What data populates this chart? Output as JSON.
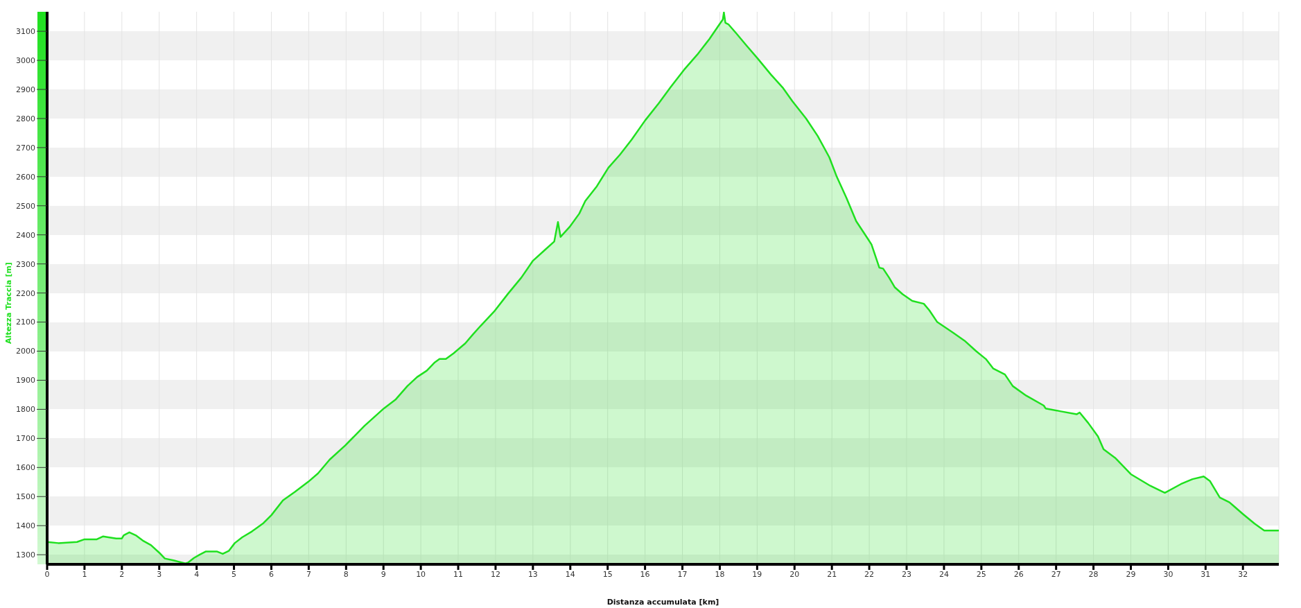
{
  "chart_data": {
    "type": "area",
    "xlabel": "Distanza accumulata [km]",
    "ylabel": "Altezza Traccia [m]",
    "x": [
      0,
      0.3,
      0.8,
      1.0,
      1.33,
      1.5,
      1.64,
      1.85,
      2.0,
      2.05,
      2.2,
      2.37,
      2.58,
      2.78,
      3.0,
      3.15,
      3.4,
      3.7,
      3.77,
      3.93,
      4.08,
      4.24,
      4.55,
      4.7,
      4.86,
      5.02,
      5.22,
      5.48,
      5.79,
      6.0,
      6.31,
      6.63,
      6.99,
      7.25,
      7.56,
      7.98,
      8.49,
      9.01,
      9.32,
      9.64,
      9.9,
      10.16,
      10.36,
      10.5,
      10.67,
      10.88,
      11.19,
      11.39,
      11.6,
      11.96,
      12.33,
      12.69,
      13.0,
      13.31,
      13.57,
      13.67,
      13.74,
      13.98,
      14.24,
      14.4,
      14.71,
      15.02,
      15.33,
      15.64,
      16.0,
      16.37,
      16.68,
      17.04,
      17.4,
      17.72,
      17.97,
      18.08,
      18.11,
      18.15,
      18.23,
      18.44,
      18.7,
      19.01,
      19.37,
      19.68,
      19.94,
      20.31,
      20.62,
      20.93,
      21.13,
      21.39,
      21.65,
      21.96,
      22.06,
      22.27,
      22.37,
      22.53,
      22.68,
      22.89,
      23.15,
      23.46,
      23.61,
      23.82,
      24.24,
      24.55,
      24.86,
      25.12,
      25.32,
      25.63,
      25.84,
      26.2,
      26.67,
      26.72,
      27.13,
      27.55,
      27.63,
      27.86,
      28.12,
      28.27,
      28.58,
      29.0,
      29.52,
      29.91,
      30.34,
      30.65,
      30.95,
      31.12,
      31.38,
      31.64,
      32.0,
      32.31,
      32.57,
      32.96
    ],
    "series": [
      {
        "color": "#1fe01f",
        "values": [
          1344,
          1340,
          1344,
          1353,
          1353,
          1363,
          1360,
          1356,
          1356,
          1367,
          1377,
          1367,
          1347,
          1333,
          1307,
          1287,
          1280,
          1270,
          1273,
          1289,
          1300,
          1311,
          1311,
          1303,
          1313,
          1340,
          1360,
          1380,
          1409,
          1436,
          1487,
          1516,
          1551,
          1580,
          1627,
          1676,
          1743,
          1803,
          1833,
          1880,
          1911,
          1933,
          1960,
          1973,
          1973,
          1993,
          2027,
          2057,
          2087,
          2136,
          2197,
          2253,
          2311,
          2347,
          2377,
          2444,
          2393,
          2427,
          2473,
          2516,
          2567,
          2631,
          2676,
          2727,
          2793,
          2853,
          2907,
          2967,
          3020,
          3073,
          3120,
          3140,
          3165,
          3129,
          3124,
          3093,
          3053,
          3007,
          2951,
          2907,
          2860,
          2800,
          2740,
          2667,
          2600,
          2527,
          2447,
          2387,
          2367,
          2287,
          2284,
          2253,
          2220,
          2196,
          2173,
          2163,
          2140,
          2100,
          2064,
          2036,
          2000,
          1973,
          1940,
          1920,
          1880,
          1847,
          1813,
          1803,
          1793,
          1783,
          1789,
          1753,
          1707,
          1663,
          1633,
          1577,
          1537,
          1513,
          1543,
          1560,
          1569,
          1553,
          1497,
          1480,
          1440,
          1407,
          1383,
          1383
        ]
      }
    ],
    "xlim": [
      0,
      32.96
    ],
    "ylim": [
      1267,
      3167
    ],
    "xticks": [
      0,
      1,
      2,
      3,
      4,
      5,
      6,
      7,
      8,
      9,
      10,
      11,
      12,
      13,
      14,
      15,
      16,
      17,
      18,
      19,
      20,
      21,
      22,
      23,
      24,
      25,
      26,
      27,
      28,
      29,
      30,
      31,
      32
    ],
    "yticks": [
      1300,
      1400,
      1500,
      1600,
      1700,
      1800,
      1900,
      2000,
      2100,
      2200,
      2300,
      2400,
      2500,
      2600,
      2700,
      2800,
      2900,
      3000,
      3100
    ],
    "grid": true
  }
}
